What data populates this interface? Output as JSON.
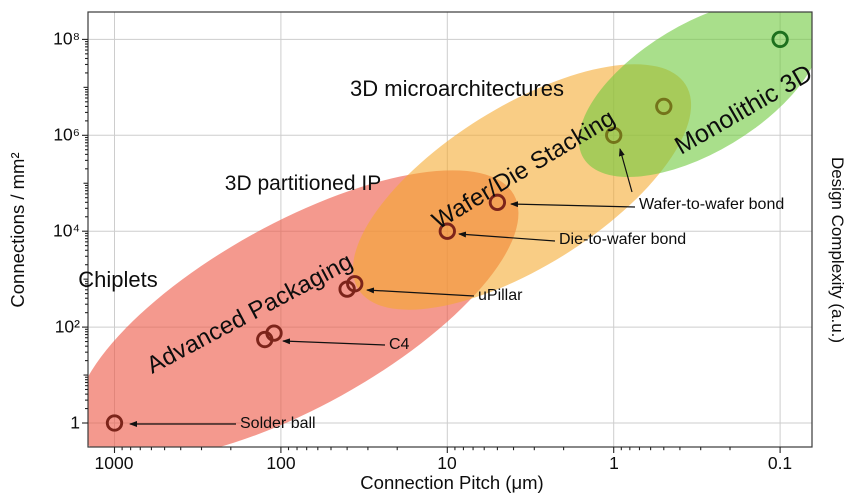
{
  "chart_data": {
    "type": "scatter",
    "x_axis": {
      "label": "Connection Pitch (μm)",
      "scale": "log",
      "direction": "reversed",
      "range": [
        1500,
        0.08
      ],
      "ticks": [
        1000,
        100,
        10,
        1,
        0.1
      ],
      "tick_labels": [
        "1000",
        "100",
        "10",
        "1",
        "0.1"
      ]
    },
    "y_axis": {
      "label": "Connections / mm²",
      "scale": "log",
      "range": [
        1,
        100000000
      ],
      "ticks": [
        1,
        100,
        10000,
        1000000,
        100000000
      ],
      "tick_labels": [
        "1",
        "10²",
        "10⁴",
        "10⁶",
        "10⁸"
      ]
    },
    "y_axis_right": {
      "label": "Design Complexity (a.u.)"
    },
    "grid": "major",
    "regions": [
      {
        "name": "Advanced Packaging",
        "caption": "Chiplets",
        "color": "#ee5a48"
      },
      {
        "name": "Wafer/Die Stacking",
        "caption": "3D partitioned IP",
        "color": "#f5a82d"
      },
      {
        "name": "Monolithic 3D",
        "caption": "3D microarchitectures",
        "color": "#70c93e"
      }
    ],
    "points": [
      {
        "label": "Solder ball",
        "pitch_um": 1000,
        "connections_per_mm2": 1,
        "color": "#7c241a"
      },
      {
        "label": "C4",
        "pitch_um": 125,
        "connections_per_mm2": 55,
        "color": "#7c241a"
      },
      {
        "label": "C4",
        "pitch_um": 110,
        "connections_per_mm2": 75,
        "color": "#7c241a"
      },
      {
        "label": "uPillar",
        "pitch_um": 40,
        "connections_per_mm2": 620,
        "color": "#7c241a"
      },
      {
        "label": "uPillar",
        "pitch_um": 36,
        "connections_per_mm2": 800,
        "color": "#7c241a"
      },
      {
        "label": "Die-to-wafer bond",
        "pitch_um": 10,
        "connections_per_mm2": 10000,
        "color": "#7c241a"
      },
      {
        "label": "Wafer-to-wafer bond",
        "pitch_um": 5,
        "connections_per_mm2": 40000,
        "color": "#7c241a"
      },
      {
        "label": "Wafer-to-wafer bond",
        "pitch_um": 1,
        "connections_per_mm2": 1000000,
        "color": "#74741a"
      },
      {
        "label": "",
        "pitch_um": 0.5,
        "connections_per_mm2": 4000000,
        "color": "#74741a"
      },
      {
        "label": "Monolithic 3D",
        "pitch_um": 0.1,
        "connections_per_mm2": 100000000,
        "color": "#1d701d"
      }
    ],
    "annotations": [
      {
        "text": "Wafer-to-wafer bond"
      },
      {
        "text": "Die-to-wafer bond"
      },
      {
        "text": "uPillar"
      },
      {
        "text": "C4"
      },
      {
        "text": "Solder ball"
      }
    ]
  }
}
